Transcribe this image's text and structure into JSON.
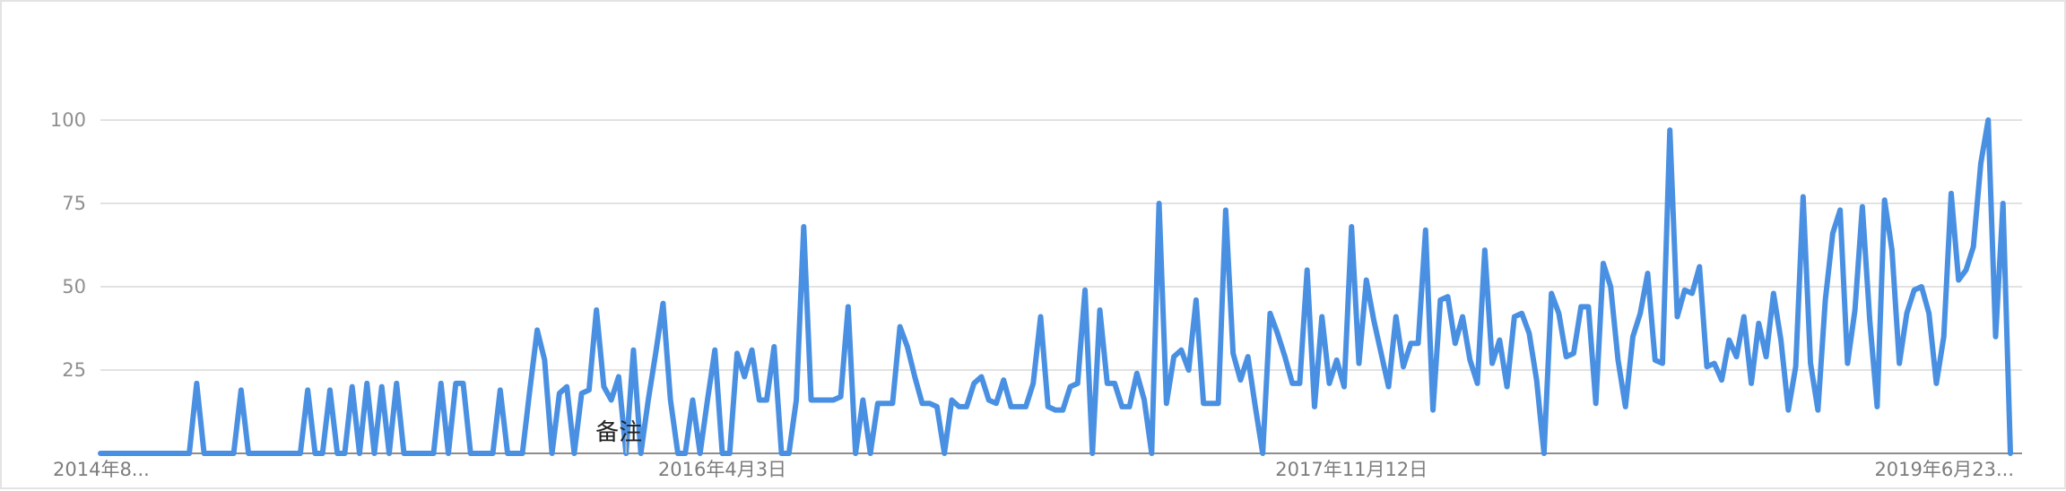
{
  "chart_data": {
    "type": "line",
    "title": "",
    "xlabel": "",
    "ylabel": "",
    "ylim": [
      0,
      100
    ],
    "yticks": [
      25,
      50,
      75,
      100
    ],
    "x_tick_labels": [
      "2014年8...",
      "2016年4月3日",
      "2017年11月12日",
      "2019年6月23..."
    ],
    "x_tick_indices": [
      0,
      84,
      169,
      253
    ],
    "annotation": {
      "label": "备注",
      "index": 71
    },
    "colors": {
      "line": "#4a90e2",
      "grid": "#d8d8d8",
      "axis": "#8d8d8d"
    },
    "partial_from_index": 259,
    "series": [
      {
        "values": [
          0,
          0,
          0,
          0,
          0,
          0,
          0,
          0,
          0,
          0,
          0,
          0,
          0,
          21,
          0,
          0,
          0,
          0,
          0,
          19,
          0,
          0,
          0,
          0,
          0,
          0,
          0,
          0,
          19,
          0,
          0,
          19,
          0,
          0,
          20,
          0,
          21,
          0,
          20,
          0,
          21,
          0,
          0,
          0,
          0,
          0,
          21,
          0,
          21,
          21,
          0,
          0,
          0,
          0,
          19,
          0,
          0,
          0,
          19,
          37,
          28,
          0,
          18,
          20,
          0,
          18,
          19,
          43,
          20,
          16,
          23,
          0,
          31,
          0,
          16,
          30,
          45,
          16,
          0,
          0,
          16,
          0,
          16,
          31,
          0,
          0,
          30,
          23,
          31,
          16,
          16,
          32,
          0,
          0,
          16,
          68,
          16,
          16,
          16,
          16,
          17,
          44,
          0,
          16,
          0,
          15,
          15,
          15,
          38,
          32,
          23,
          15,
          15,
          14,
          0,
          16,
          14,
          14,
          21,
          23,
          16,
          15,
          22,
          14,
          14,
          14,
          21,
          41,
          14,
          13,
          13,
          20,
          21,
          49,
          0,
          43,
          21,
          21,
          14,
          14,
          24,
          16,
          0,
          75,
          15,
          29,
          31,
          25,
          46,
          15,
          15,
          15,
          73,
          30,
          22,
          29,
          14,
          0,
          42,
          36,
          29,
          21,
          21,
          55,
          14,
          41,
          21,
          28,
          20,
          68,
          27,
          52,
          40,
          30,
          20,
          41,
          26,
          33,
          33,
          67,
          13,
          46,
          47,
          33,
          41,
          28,
          21,
          61,
          27,
          34,
          20,
          41,
          42,
          36,
          22,
          0,
          48,
          42,
          29,
          30,
          44,
          44,
          15,
          57,
          50,
          28,
          14,
          35,
          42,
          54,
          28,
          27,
          97,
          41,
          49,
          48,
          56,
          26,
          27,
          22,
          34,
          29,
          41,
          21,
          39,
          29,
          48,
          34,
          13,
          26,
          77,
          27,
          13,
          46,
          66,
          73,
          27,
          43,
          74,
          40,
          14,
          76,
          61,
          27,
          42,
          49,
          50,
          42,
          21,
          35,
          78,
          52,
          55,
          62,
          87,
          100,
          35,
          75,
          0
        ]
      }
    ]
  }
}
